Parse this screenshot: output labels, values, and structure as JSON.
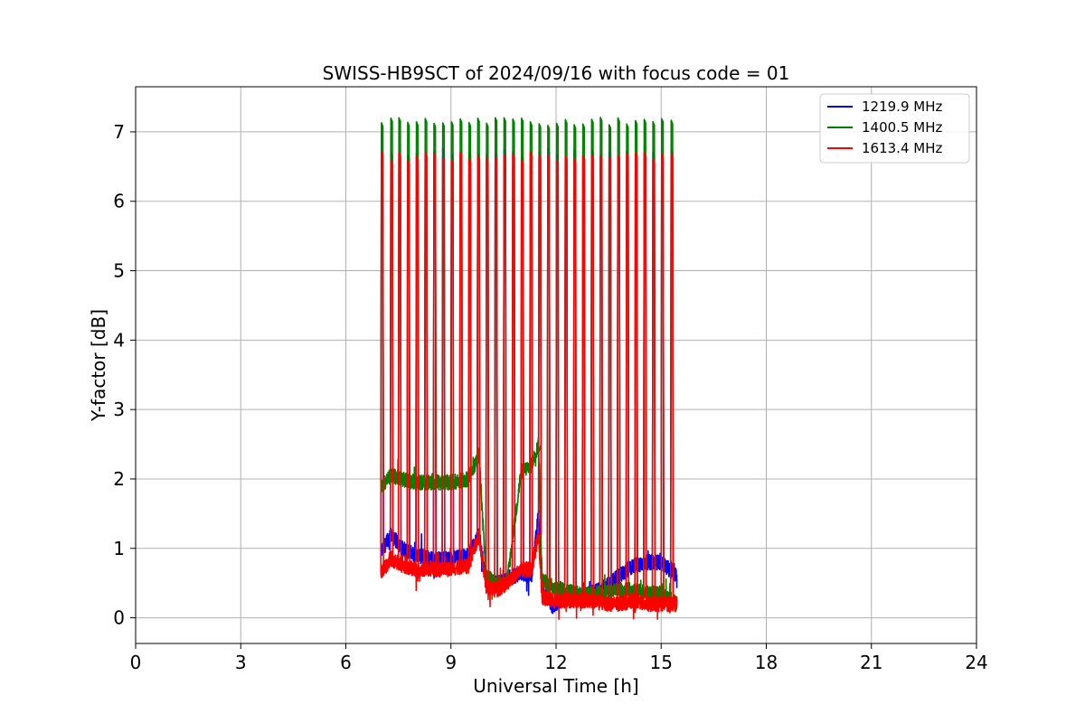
{
  "chart_data": {
    "type": "line",
    "title": "SWISS-HB9SCT of 2024/09/16 with focus code = 01",
    "xlabel": "Universal Time [h]",
    "ylabel": "Y-factor [dB]",
    "xlim": [
      0,
      24
    ],
    "ylim": [
      -0.37,
      7.65
    ],
    "xticks": [
      0,
      3,
      6,
      9,
      12,
      15,
      18,
      21,
      24
    ],
    "yticks": [
      0,
      1,
      2,
      3,
      4,
      5,
      6,
      7
    ],
    "grid": true,
    "legend_position": "top-right",
    "data_span_hours": [
      7.0,
      15.45
    ],
    "calibration_spike_times": [
      7.0,
      7.27,
      7.5,
      7.75,
      8.0,
      8.25,
      8.5,
      8.75,
      9.0,
      9.25,
      9.5,
      9.75,
      10.0,
      10.25,
      10.5,
      10.75,
      11.0,
      11.25,
      11.5,
      11.75,
      12.0,
      12.25,
      12.5,
      12.75,
      13.0,
      13.25,
      13.5,
      13.75,
      14.0,
      14.25,
      14.5,
      14.75,
      15.0,
      15.27
    ],
    "series": [
      {
        "name": "1219.9 MHz",
        "color": "#0000ff",
        "spike_peak_db": 6.7,
        "baseline_x": [
          7.0,
          7.3,
          7.6,
          8.0,
          8.5,
          9.0,
          9.5,
          9.8,
          10.0,
          10.3,
          10.6,
          11.0,
          11.3,
          11.5,
          11.6,
          11.9,
          12.2,
          12.6,
          13.0,
          13.4,
          13.8,
          14.2,
          14.6,
          15.0,
          15.45
        ],
        "baseline_db": [
          0.95,
          1.2,
          1.0,
          0.9,
          0.85,
          0.85,
          0.9,
          1.2,
          0.55,
          0.5,
          0.55,
          0.65,
          0.6,
          1.5,
          0.45,
          0.15,
          0.3,
          0.3,
          0.35,
          0.45,
          0.6,
          0.75,
          0.8,
          0.8,
          0.6
        ]
      },
      {
        "name": "1400.5 MHz",
        "color": "#008000",
        "spike_peak_db": 7.15,
        "baseline_x": [
          7.0,
          7.3,
          7.6,
          8.0,
          8.5,
          9.0,
          9.5,
          9.8,
          10.0,
          10.3,
          10.6,
          11.0,
          11.3,
          11.5,
          11.6,
          11.9,
          12.2,
          12.6,
          13.0,
          13.4,
          13.8,
          14.2,
          14.6,
          15.0,
          15.45
        ],
        "baseline_db": [
          1.9,
          2.05,
          2.0,
          1.95,
          1.95,
          1.95,
          2.0,
          2.35,
          0.6,
          0.5,
          0.5,
          2.1,
          2.2,
          2.5,
          0.55,
          0.45,
          0.4,
          0.35,
          0.35,
          0.35,
          0.4,
          0.4,
          0.35,
          0.35,
          0.2
        ]
      },
      {
        "name": "1613.4 MHz",
        "color": "#ff0000",
        "spike_peak_db": 6.65,
        "baseline_x": [
          7.0,
          7.3,
          7.6,
          8.0,
          8.5,
          9.0,
          9.5,
          9.8,
          10.0,
          10.3,
          10.6,
          11.0,
          11.3,
          11.5,
          11.6,
          11.9,
          12.2,
          12.6,
          13.0,
          13.4,
          13.8,
          14.2,
          14.6,
          15.0,
          15.45
        ],
        "baseline_db": [
          0.65,
          0.85,
          0.75,
          0.7,
          0.7,
          0.7,
          0.75,
          1.2,
          0.45,
          0.4,
          0.5,
          0.7,
          0.7,
          1.2,
          0.3,
          0.25,
          0.25,
          0.25,
          0.25,
          0.2,
          0.2,
          0.25,
          0.2,
          0.2,
          0.2
        ]
      }
    ]
  }
}
